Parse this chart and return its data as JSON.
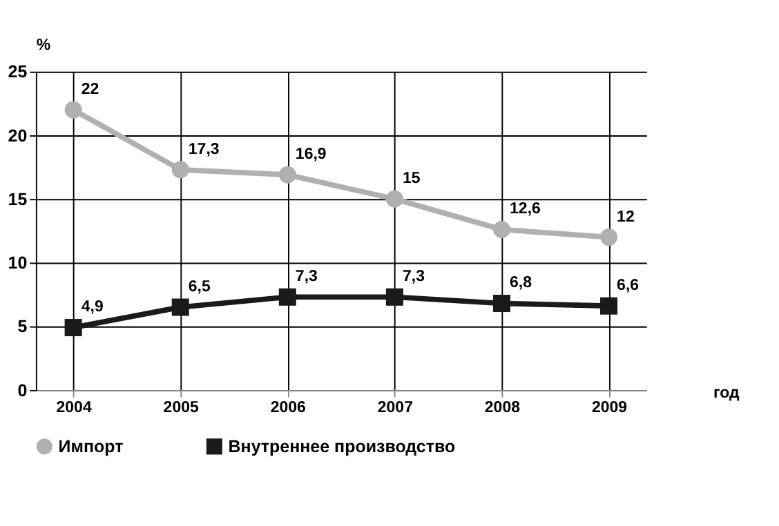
{
  "chart_data": {
    "type": "line",
    "xlabel": "год",
    "ylabel": "%",
    "categories": [
      "2004",
      "2005",
      "2006",
      "2007",
      "2008",
      "2009"
    ],
    "series": [
      {
        "name": "Импорт",
        "color": "#b0b0b0",
        "marker": "circle",
        "values": [
          22,
          17.3,
          16.9,
          15,
          12.6,
          12
        ],
        "value_labels": [
          "22",
          "17,3",
          "16,9",
          "15",
          "12,6",
          "12"
        ]
      },
      {
        "name": "Внутреннее производство",
        "color": "#1a1a1a",
        "marker": "square",
        "values": [
          4.9,
          6.5,
          7.3,
          7.3,
          6.8,
          6.6
        ],
        "value_labels": [
          "4,9",
          "6,5",
          "7,3",
          "7,3",
          "6,8",
          "6,6"
        ]
      }
    ],
    "ylim": [
      0,
      25
    ],
    "yticks": [
      0,
      5,
      10,
      15,
      20,
      25
    ],
    "grid": true,
    "legend": "bottom",
    "line_style": "solid"
  }
}
